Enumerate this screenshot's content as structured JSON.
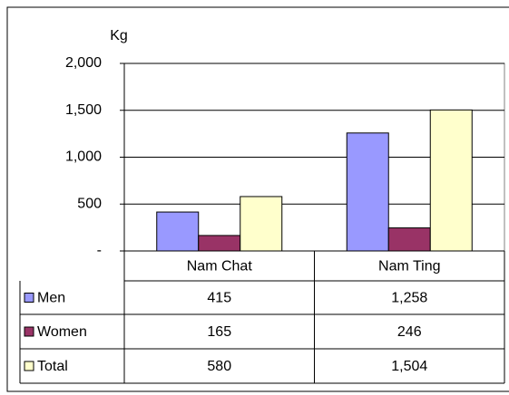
{
  "chart_data": {
    "type": "bar",
    "y_label": "Kg",
    "categories": [
      "Nam Chat",
      "Nam Ting"
    ],
    "series": [
      {
        "name": "Men",
        "color": "#9999ff",
        "values": [
          415,
          1258
        ],
        "value_labels": [
          "415",
          "1,258"
        ]
      },
      {
        "name": "Women",
        "color": "#993366",
        "values": [
          165,
          246
        ],
        "value_labels": [
          "165",
          "246"
        ]
      },
      {
        "name": "Total",
        "color": "#ffffcc",
        "values": [
          580,
          1504
        ],
        "value_labels": [
          "580",
          "1,504"
        ]
      }
    ],
    "ylim": [
      0,
      2000
    ],
    "yticks": [
      {
        "value": 0,
        "label": "-"
      },
      {
        "value": 500,
        "label": "500"
      },
      {
        "value": 1000,
        "label": "1,000"
      },
      {
        "value": 1500,
        "label": "1,500"
      },
      {
        "value": 2000,
        "label": "2,000"
      }
    ],
    "grid": true
  }
}
